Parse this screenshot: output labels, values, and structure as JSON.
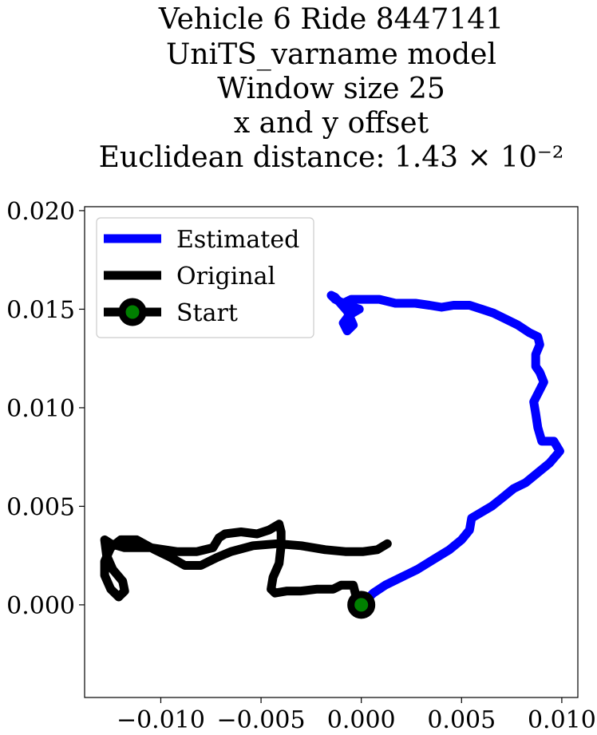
{
  "chart_data": {
    "type": "line",
    "title_lines": [
      "Vehicle 6 Ride 8447141",
      "UniTS_varname model",
      "Window size 25",
      "x and y offset",
      "Euclidean distance: 1.43 × 10⁻²"
    ],
    "xlabel": "",
    "ylabel": "",
    "xlim": [
      -0.0138,
      0.0108
    ],
    "ylim": [
      -0.0047,
      0.0202
    ],
    "xticks": [
      -0.01,
      -0.005,
      0.0,
      0.005,
      0.01
    ],
    "xtick_labels": [
      "−0.010",
      "−0.005",
      "0.000",
      "0.005",
      "0.010"
    ],
    "yticks": [
      0.0,
      0.005,
      0.01,
      0.015,
      0.02
    ],
    "ytick_labels": [
      "0.000",
      "0.005",
      "0.010",
      "0.015",
      "0.020"
    ],
    "grid": false,
    "legend_position": "top-left",
    "series": [
      {
        "name": "Estimated",
        "color": "#0000ff",
        "points": [
          [
            0.0,
            0.0
          ],
          [
            0.0006,
            0.0006
          ],
          [
            0.0012,
            0.001
          ],
          [
            0.002,
            0.0014
          ],
          [
            0.0028,
            0.0018
          ],
          [
            0.0036,
            0.0023
          ],
          [
            0.0044,
            0.0028
          ],
          [
            0.005,
            0.0033
          ],
          [
            0.0054,
            0.0038
          ],
          [
            0.0055,
            0.0044
          ],
          [
            0.006,
            0.0047
          ],
          [
            0.0065,
            0.005
          ],
          [
            0.007,
            0.0054
          ],
          [
            0.0076,
            0.0059
          ],
          [
            0.0082,
            0.0062
          ],
          [
            0.0088,
            0.0067
          ],
          [
            0.0094,
            0.0072
          ],
          [
            0.0099,
            0.0078
          ],
          [
            0.0096,
            0.0083
          ],
          [
            0.009,
            0.0083
          ],
          [
            0.0088,
            0.009
          ],
          [
            0.0087,
            0.0097
          ],
          [
            0.0086,
            0.0103
          ],
          [
            0.0091,
            0.0113
          ],
          [
            0.0089,
            0.0118
          ],
          [
            0.0087,
            0.0121
          ],
          [
            0.0087,
            0.0127
          ],
          [
            0.0089,
            0.0132
          ],
          [
            0.0088,
            0.0136
          ],
          [
            0.0084,
            0.0138
          ],
          [
            0.0078,
            0.0142
          ],
          [
            0.0072,
            0.0145
          ],
          [
            0.0066,
            0.0148
          ],
          [
            0.006,
            0.015
          ],
          [
            0.0054,
            0.0152
          ],
          [
            0.0046,
            0.0152
          ],
          [
            0.004,
            0.0151
          ],
          [
            0.0034,
            0.0152
          ],
          [
            0.0027,
            0.0153
          ],
          [
            0.0017,
            0.0153
          ],
          [
            0.0009,
            0.0155
          ],
          [
            0.0001,
            0.0155
          ],
          [
            -0.0005,
            0.0155
          ],
          [
            -0.0009,
            0.0153
          ],
          [
            -0.0013,
            0.0155
          ],
          [
            -0.0015,
            0.0157
          ],
          [
            -0.0013,
            0.0156
          ],
          [
            -0.0007,
            0.0149
          ],
          [
            -0.0004,
            0.0142
          ],
          [
            -0.0007,
            0.0139
          ],
          [
            -0.0009,
            0.0143
          ],
          [
            -0.0006,
            0.0147
          ],
          [
            -0.0001,
            0.015
          ],
          [
            -0.0004,
            0.0151
          ],
          [
            -0.0007,
            0.0149
          ]
        ]
      },
      {
        "name": "Original",
        "color": "#000000",
        "points": [
          [
            0.0013,
            0.0031
          ],
          [
            0.0008,
            0.0028
          ],
          [
            0.0001,
            0.0027
          ],
          [
            -0.0008,
            0.0027
          ],
          [
            -0.0018,
            0.0028
          ],
          [
            -0.003,
            0.003
          ],
          [
            -0.0042,
            0.0031
          ],
          [
            -0.0054,
            0.003
          ],
          [
            -0.0065,
            0.0027
          ],
          [
            -0.0072,
            0.0024
          ],
          [
            -0.008,
            0.002
          ],
          [
            -0.0088,
            0.002
          ],
          [
            -0.0095,
            0.0024
          ],
          [
            -0.0103,
            0.0028
          ],
          [
            -0.0112,
            0.0033
          ],
          [
            -0.012,
            0.0033
          ],
          [
            -0.0125,
            0.0029
          ],
          [
            -0.0128,
            0.0022
          ],
          [
            -0.0128,
            0.0015
          ],
          [
            -0.0125,
            0.0008
          ],
          [
            -0.0121,
            0.0004
          ],
          [
            -0.0118,
            0.0007
          ],
          [
            -0.0119,
            0.0012
          ],
          [
            -0.0124,
            0.0018
          ],
          [
            -0.0127,
            0.0025
          ],
          [
            -0.0128,
            0.0033
          ],
          [
            -0.0125,
            0.0031
          ],
          [
            -0.0118,
            0.0029
          ],
          [
            -0.0105,
            0.0029
          ],
          [
            -0.0092,
            0.0027
          ],
          [
            -0.0082,
            0.0027
          ],
          [
            -0.0074,
            0.0029
          ],
          [
            -0.0071,
            0.0034
          ],
          [
            -0.0068,
            0.0036
          ],
          [
            -0.006,
            0.0037
          ],
          [
            -0.0052,
            0.0036
          ],
          [
            -0.0046,
            0.0038
          ],
          [
            -0.0041,
            0.0041
          ],
          [
            -0.004,
            0.0037
          ],
          [
            -0.004,
            0.003
          ],
          [
            -0.0041,
            0.0021
          ],
          [
            -0.0044,
            0.0014
          ],
          [
            -0.0045,
            0.0008
          ],
          [
            -0.0043,
            0.0006
          ],
          [
            -0.0037,
            0.0007
          ],
          [
            -0.003,
            0.0007
          ],
          [
            -0.0022,
            0.0008
          ],
          [
            -0.0014,
            0.0008
          ],
          [
            -0.001,
            0.001
          ],
          [
            -0.0004,
            0.001
          ],
          [
            -0.0003,
            0.0006
          ],
          [
            -0.0002,
            0.0001
          ],
          [
            0.0,
            0.0
          ]
        ]
      }
    ],
    "start": {
      "name": "Start",
      "x": 0.0,
      "y": 0.0,
      "marker_color": "#008000",
      "edge_color": "#000000"
    }
  }
}
